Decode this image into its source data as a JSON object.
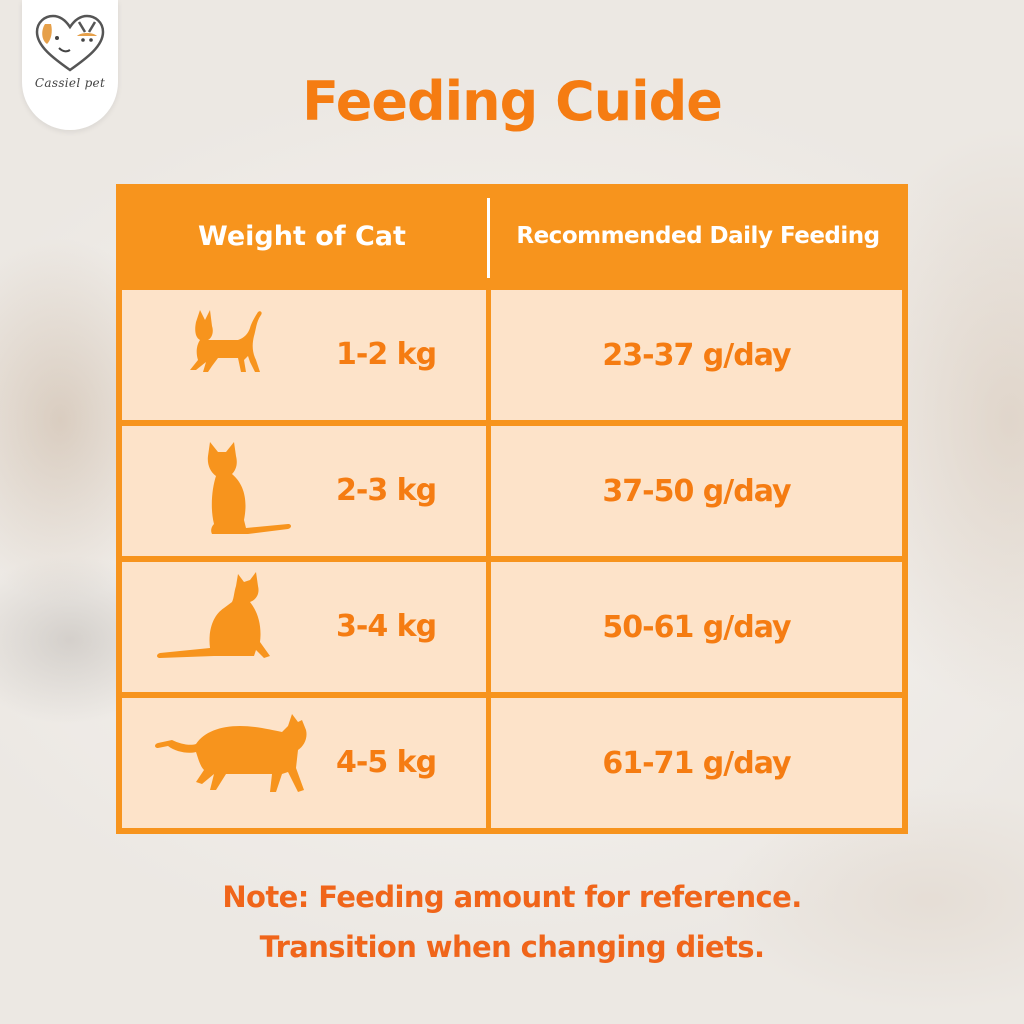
{
  "brand": {
    "name": "Cassiel pet",
    "logo_icon": "cat-dog-heart-icon"
  },
  "title": "Feeding Cuide",
  "colors": {
    "accent": "#f7941d",
    "text_orange": "#f57c12",
    "cell_bg": "#fde3c9",
    "note": "#f0651a"
  },
  "table": {
    "headers": {
      "weight": "Weight of Cat",
      "feeding": "Recommended Daily Feeding"
    },
    "rows": [
      {
        "icon": "standing-kitten-icon",
        "weight": "1-2 kg",
        "feeding": "23-37 g/day"
      },
      {
        "icon": "sitting-cat-icon",
        "weight": "2-3 kg",
        "feeding": "37-50 g/day"
      },
      {
        "icon": "sitting-cat-looking-up-icon",
        "weight": "3-4 kg",
        "feeding": "50-61 g/day"
      },
      {
        "icon": "walking-cat-icon",
        "weight": "4-5 kg",
        "feeding": "61-71 g/day"
      }
    ]
  },
  "note": {
    "line1": "Note: Feeding amount for reference.",
    "line2": "Transition when changing diets."
  }
}
